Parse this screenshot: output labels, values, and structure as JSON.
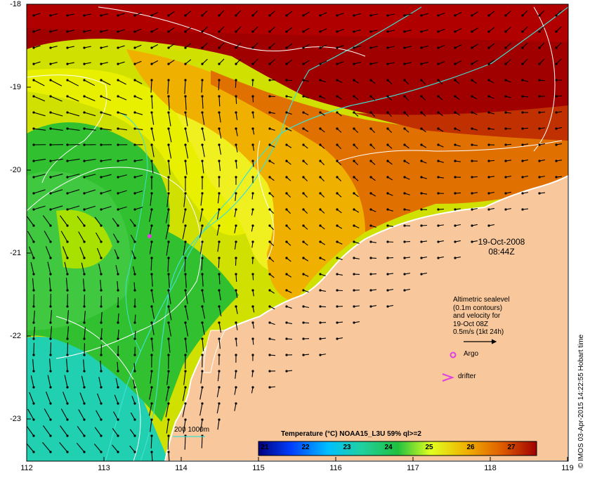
{
  "map": {
    "x_ticks": [
      "112",
      "113",
      "114",
      "115",
      "116",
      "117",
      "118",
      "119"
    ],
    "y_ticks": [
      "-18",
      "-19",
      "-20",
      "-21",
      "-22",
      "-23"
    ],
    "date": "19-Oct-2008",
    "time": "08:44Z",
    "altimetry_lines": [
      "Altimetric sealevel",
      "(0.1m contours)",
      "and velocity for",
      "19-Oct 08Z",
      "0.5m/s (1kt 24h)"
    ],
    "argo_label": "Argo",
    "drifter_label": "drifter",
    "colorbar_title": "Temperature (°C) NOAA15_L3U 59% ql>=2",
    "colorbar_ticks": [
      "21",
      "22",
      "23",
      "24",
      "25",
      "26",
      "27"
    ],
    "contour_legend": "200  1000m",
    "credit": "© IMOS 03-Apr-2015 14:22:55 Hobart time",
    "colors": {
      "land": "#f8c89c",
      "coast_line": "#ffffff",
      "isobath": "#40e0d0",
      "contour": "#ffffff",
      "argo": "#e040e0"
    }
  }
}
